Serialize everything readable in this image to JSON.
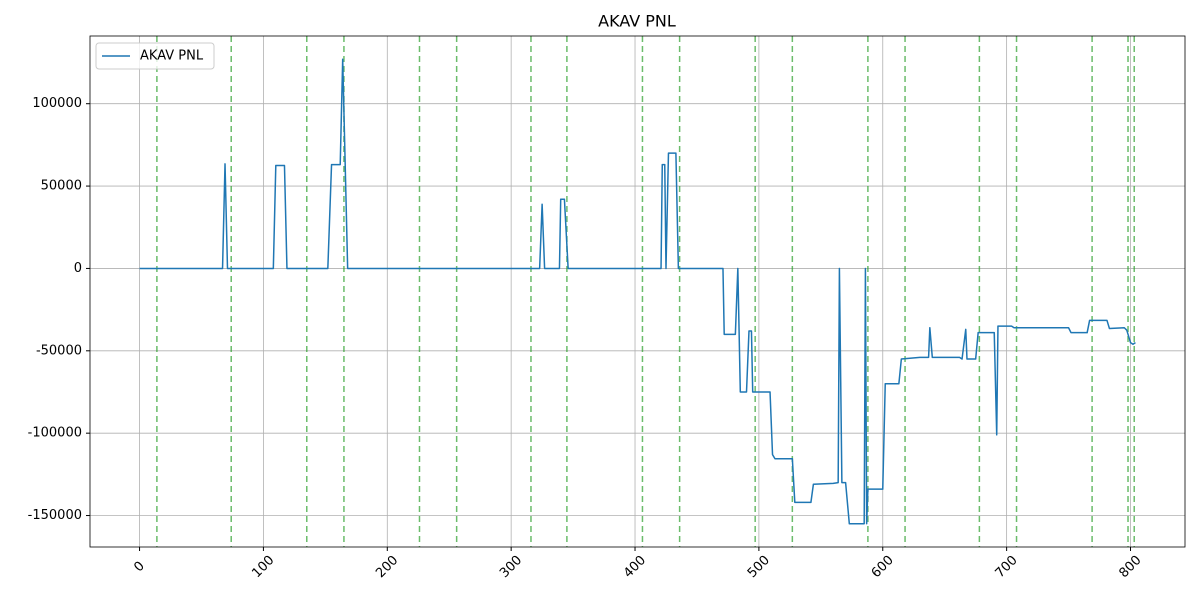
{
  "chart_data": {
    "type": "line",
    "title": "AKAV PNL",
    "x": [
      0,
      67,
      69,
      71,
      108,
      110,
      117,
      119,
      152,
      155,
      162,
      164,
      168,
      323,
      325,
      327,
      339,
      340,
      343,
      346,
      421,
      422,
      424,
      425,
      427,
      433,
      435,
      471,
      472,
      481,
      483,
      485,
      490,
      492,
      494,
      495,
      509,
      511,
      513,
      527,
      529,
      542,
      544,
      560,
      564,
      565,
      567,
      570,
      573,
      585,
      586,
      587,
      588,
      600,
      602,
      613,
      615,
      630,
      637,
      638,
      640,
      662,
      664,
      667,
      668,
      675,
      677,
      690,
      692,
      693,
      704,
      706,
      720,
      750,
      752,
      765,
      767,
      781,
      783,
      795,
      797,
      800,
      802,
      804
    ],
    "series": [
      {
        "name": "AKAV PNL",
        "color": "#1f77b4",
        "values": [
          0,
          0,
          63500,
          0,
          0,
          62500,
          62500,
          0,
          0,
          63000,
          63000,
          127000,
          0,
          0,
          39000,
          0,
          0,
          42000,
          42000,
          0,
          0,
          63000,
          63000,
          0,
          70000,
          70000,
          0,
          0,
          -40000,
          -40000,
          0,
          -75000,
          -75000,
          -38000,
          -38000,
          -75000,
          -75000,
          -113000,
          -115500,
          -115500,
          -142000,
          -142000,
          -131000,
          -130500,
          -130000,
          0,
          -130000,
          -130000,
          -155000,
          -155000,
          0,
          -155000,
          -134000,
          -134000,
          -70000,
          -70000,
          -55000,
          -54000,
          -54000,
          -36000,
          -54000,
          -54000,
          -55000,
          -37000,
          -55000,
          -55000,
          -39000,
          -39000,
          -101000,
          -35000,
          -35000,
          -36000,
          -36000,
          -36000,
          -39000,
          -39000,
          -31500,
          -31500,
          -36500,
          -36000,
          -37500,
          -45000,
          -46000,
          -45000
        ]
      }
    ],
    "vlines": [
      14,
      74,
      135,
      165,
      226,
      256,
      316,
      345,
      406,
      436,
      497,
      527,
      588,
      618,
      678,
      708,
      769,
      798,
      803
    ],
    "vline_color": "#2ca02c",
    "xlim": [
      -40,
      844
    ],
    "ylim": [
      -169100,
      141100
    ],
    "xticks": [
      0,
      100,
      200,
      300,
      400,
      500,
      600,
      700,
      800
    ],
    "yticks": [
      -150000,
      -100000,
      -50000,
      0,
      50000,
      100000
    ],
    "grid": true,
    "legend": "upper left"
  }
}
